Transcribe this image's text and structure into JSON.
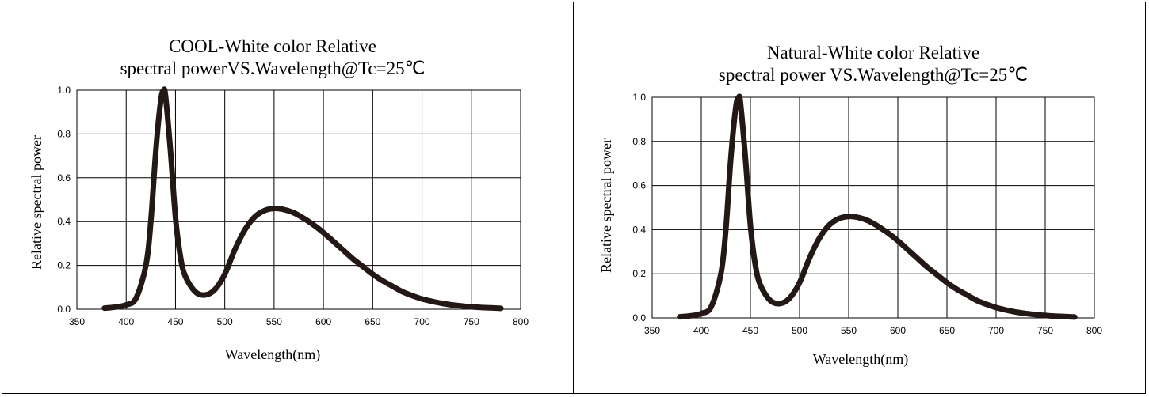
{
  "chart_data": [
    {
      "type": "line",
      "title": "COOL-White color Relative",
      "subtitle": "spectral powerVS.Wavelength@Tc=25℃",
      "xlabel": "Wavelength(nm)",
      "ylabel": "Relative spectral power",
      "xlim": [
        350,
        800
      ],
      "ylim": [
        0.0,
        1.0
      ],
      "xticks": [
        "350",
        "400",
        "450",
        "500",
        "550",
        "600",
        "650",
        "700",
        "750",
        "800"
      ],
      "yticks": [
        "0.0",
        "0.2",
        "0.4",
        "0.6",
        "0.8",
        "1.0"
      ],
      "grid": true,
      "line_color": "#231815",
      "series": [
        {
          "x": [
            378,
            390,
            400,
            410,
            420,
            425,
            430,
            435,
            438,
            440,
            445,
            450,
            455,
            460,
            470,
            480,
            490,
            500,
            510,
            520,
            530,
            540,
            550,
            560,
            570,
            580,
            590,
            600,
            610,
            620,
            630,
            640,
            650,
            660,
            670,
            680,
            690,
            700,
            710,
            720,
            730,
            740,
            750,
            760,
            770,
            780
          ],
          "y": [
            0.005,
            0.01,
            0.02,
            0.05,
            0.2,
            0.4,
            0.72,
            0.95,
            1.0,
            0.97,
            0.72,
            0.42,
            0.24,
            0.15,
            0.08,
            0.065,
            0.09,
            0.16,
            0.27,
            0.36,
            0.42,
            0.45,
            0.46,
            0.455,
            0.44,
            0.415,
            0.385,
            0.35,
            0.31,
            0.27,
            0.23,
            0.195,
            0.16,
            0.13,
            0.105,
            0.08,
            0.062,
            0.047,
            0.036,
            0.027,
            0.02,
            0.015,
            0.011,
            0.008,
            0.006,
            0.004
          ]
        }
      ]
    },
    {
      "type": "line",
      "title": "Natural-White color Relative",
      "subtitle": "spectral power VS.Wavelength@Tc=25℃",
      "xlabel": "Wavelength(nm)",
      "ylabel": "Relative spectral power",
      "xlim": [
        350,
        800
      ],
      "ylim": [
        0.0,
        1.0
      ],
      "xticks": [
        "350",
        "400",
        "450",
        "500",
        "550",
        "600",
        "650",
        "700",
        "750",
        "800"
      ],
      "yticks": [
        "0.0",
        "0.2",
        "0.4",
        "0.6",
        "0.8",
        "1.0"
      ],
      "grid": true,
      "line_color": "#231815",
      "series": [
        {
          "x": [
            378,
            390,
            400,
            410,
            420,
            425,
            430,
            435,
            438,
            440,
            445,
            450,
            455,
            460,
            470,
            480,
            490,
            500,
            510,
            520,
            530,
            540,
            550,
            560,
            570,
            580,
            590,
            600,
            610,
            620,
            630,
            640,
            650,
            660,
            670,
            680,
            690,
            700,
            710,
            720,
            730,
            740,
            750,
            760,
            770,
            780
          ],
          "y": [
            0.005,
            0.01,
            0.02,
            0.05,
            0.2,
            0.4,
            0.72,
            0.95,
            1.0,
            0.97,
            0.72,
            0.42,
            0.24,
            0.15,
            0.08,
            0.065,
            0.09,
            0.16,
            0.27,
            0.36,
            0.42,
            0.45,
            0.46,
            0.455,
            0.44,
            0.415,
            0.385,
            0.35,
            0.31,
            0.27,
            0.23,
            0.195,
            0.16,
            0.13,
            0.105,
            0.08,
            0.062,
            0.047,
            0.036,
            0.027,
            0.02,
            0.015,
            0.011,
            0.008,
            0.006,
            0.004
          ]
        }
      ]
    }
  ]
}
